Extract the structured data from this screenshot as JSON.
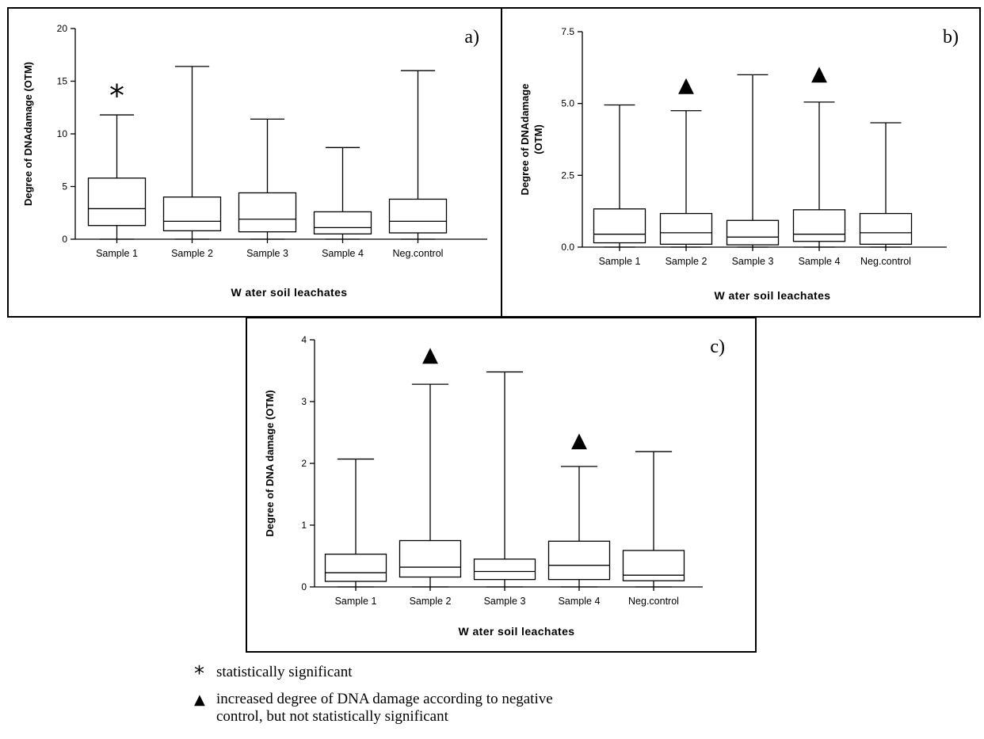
{
  "figure": {
    "notes": [
      {
        "symbol": "*",
        "lines": [
          "statistically significant"
        ]
      },
      {
        "symbol": "▲",
        "lines": [
          "increased degree of DNA damage according to negative",
          "control, but not statistically significant"
        ]
      }
    ]
  },
  "chart_data": [
    {
      "type": "box",
      "panel_label": "a)",
      "ylabel": "Degree of DNAdamage (OTM)",
      "xlabel": "W ater soil leachates",
      "categories": [
        "Sample 1",
        "Sample 2",
        "Sample 3",
        "Sample 4",
        "Neg.control"
      ],
      "ylim": [
        0,
        20
      ],
      "yticks": [
        0,
        5,
        10,
        15,
        20
      ],
      "ytick_labels": [
        "0",
        "5",
        "10",
        "15",
        "20"
      ],
      "boxes": [
        {
          "min": 0,
          "q1": 1.3,
          "median": 2.9,
          "q3": 5.8,
          "max": 11.8
        },
        {
          "min": 0,
          "q1": 0.8,
          "median": 1.7,
          "q3": 4.0,
          "max": 16.4
        },
        {
          "min": 0,
          "q1": 0.7,
          "median": 1.9,
          "q3": 4.4,
          "max": 11.4
        },
        {
          "min": 0,
          "q1": 0.5,
          "median": 1.1,
          "q3": 2.6,
          "max": 8.7
        },
        {
          "min": 0,
          "q1": 0.6,
          "median": 1.7,
          "q3": 3.8,
          "max": 16.0
        }
      ],
      "markers": [
        {
          "category": "Sample 1",
          "symbol": "*",
          "y": 14.0
        }
      ]
    },
    {
      "type": "box",
      "panel_label": "b)",
      "ylabel": "Degree of DNAdamage (OTM)",
      "ylabel_lines": [
        "Degree of DNAdamage",
        "(OTM)"
      ],
      "xlabel": "W ater soil leachates",
      "categories": [
        "Sample 1",
        "Sample 2",
        "Sample 3",
        "Sample 4",
        "Neg.control"
      ],
      "ylim": [
        0,
        7.5
      ],
      "yticks": [
        0,
        2.5,
        5,
        7.5
      ],
      "ytick_labels": [
        "0.0",
        "2.5",
        "5.0",
        "7.5"
      ],
      "boxes": [
        {
          "min": 0,
          "q1": 0.15,
          "median": 0.45,
          "q3": 1.33,
          "max": 4.95
        },
        {
          "min": 0,
          "q1": 0.1,
          "median": 0.5,
          "q3": 1.17,
          "max": 4.75
        },
        {
          "min": 0,
          "q1": 0.08,
          "median": 0.35,
          "q3": 0.93,
          "max": 6.0
        },
        {
          "min": 0,
          "q1": 0.2,
          "median": 0.45,
          "q3": 1.3,
          "max": 5.05
        },
        {
          "min": 0,
          "q1": 0.1,
          "median": 0.5,
          "q3": 1.17,
          "max": 4.33
        }
      ],
      "markers": [
        {
          "category": "Sample 2",
          "symbol": "▲",
          "y": 5.7
        },
        {
          "category": "Sample 4",
          "symbol": "▲",
          "y": 6.1
        }
      ]
    },
    {
      "type": "box",
      "panel_label": "c)",
      "ylabel": "Degree of DNA damage (OTM)",
      "xlabel": "W ater soil leachates",
      "categories": [
        "Sample 1",
        "Sample 2",
        "Sample 3",
        "Sample 4",
        "Neg.control"
      ],
      "ylim": [
        0,
        4
      ],
      "yticks": [
        0,
        1,
        2,
        3,
        4
      ],
      "ytick_labels": [
        "0",
        "1",
        "2",
        "3",
        "4"
      ],
      "boxes": [
        {
          "min": 0,
          "q1": 0.09,
          "median": 0.23,
          "q3": 0.53,
          "max": 2.07
        },
        {
          "min": 0,
          "q1": 0.16,
          "median": 0.32,
          "q3": 0.75,
          "max": 3.28
        },
        {
          "min": 0,
          "q1": 0.12,
          "median": 0.25,
          "q3": 0.45,
          "max": 3.48
        },
        {
          "min": 0,
          "q1": 0.12,
          "median": 0.35,
          "q3": 0.74,
          "max": 1.95
        },
        {
          "min": 0,
          "q1": 0.1,
          "median": 0.19,
          "q3": 0.59,
          "max": 2.19
        }
      ],
      "markers": [
        {
          "category": "Sample 2",
          "symbol": "▲",
          "y": 3.78
        },
        {
          "category": "Sample 4",
          "symbol": "▲",
          "y": 2.4
        }
      ]
    }
  ]
}
